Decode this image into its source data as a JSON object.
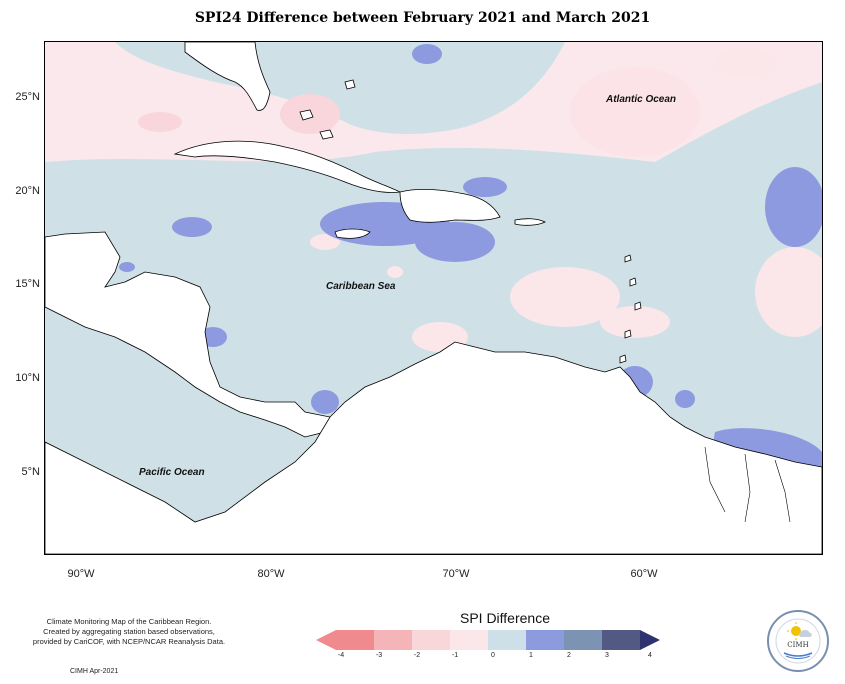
{
  "title": "SPI24 Difference between February 2021 and March 2021",
  "map": {
    "lat_labels": [
      "25°N",
      "20°N",
      "15°N",
      "10°N",
      "5°N"
    ],
    "lon_labels": [
      "90°W",
      "80°W",
      "70°W",
      "60°W"
    ],
    "ocean_labels": {
      "atlantic": "Atlantic Ocean",
      "caribbean": "Caribbean Sea",
      "pacific": "Pacific Ocean"
    }
  },
  "legend": {
    "title": "SPI Difference",
    "ticks": [
      "-4",
      "-3",
      "-2",
      "-1",
      "0",
      "1",
      "2",
      "3",
      "4"
    ],
    "colors": [
      "#f08a8f",
      "#f5b4b7",
      "#f8d6da",
      "#fbe6ea",
      "#cde0e7",
      "#8d9ae0",
      "#7c93b3",
      "#525982",
      "#2e3370"
    ]
  },
  "footer": {
    "note_line1": "Climate Monitoring Map of the Caribbean Region.",
    "note_line2": "Created by aggregating station based observations,",
    "note_line3": "provided by CariCOF, with NCEP/NCAR Reanalysis Data.",
    "date": "CIMH Apr-2021"
  },
  "logo": {
    "text": "CIMH",
    "icon": "sun-icon"
  }
}
